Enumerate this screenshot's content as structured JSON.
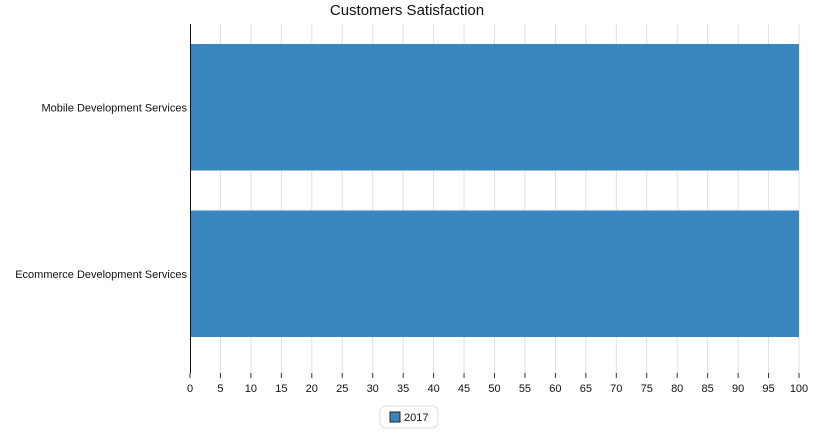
{
  "chart_data": {
    "type": "bar",
    "orientation": "horizontal",
    "title": "Customers Satisfaction",
    "categories": [
      "Mobile Development Services",
      "Ecommerce Development Services"
    ],
    "series": [
      {
        "name": "2017",
        "values": [
          100,
          100
        ],
        "color": "#3a87c0"
      }
    ],
    "xlim": [
      0,
      100
    ],
    "xticks": [
      0,
      5,
      10,
      15,
      20,
      25,
      30,
      35,
      40,
      45,
      50,
      55,
      60,
      65,
      70,
      75,
      80,
      85,
      90,
      95,
      100
    ],
    "grid": "vertical",
    "legend_position": "bottom-center"
  }
}
